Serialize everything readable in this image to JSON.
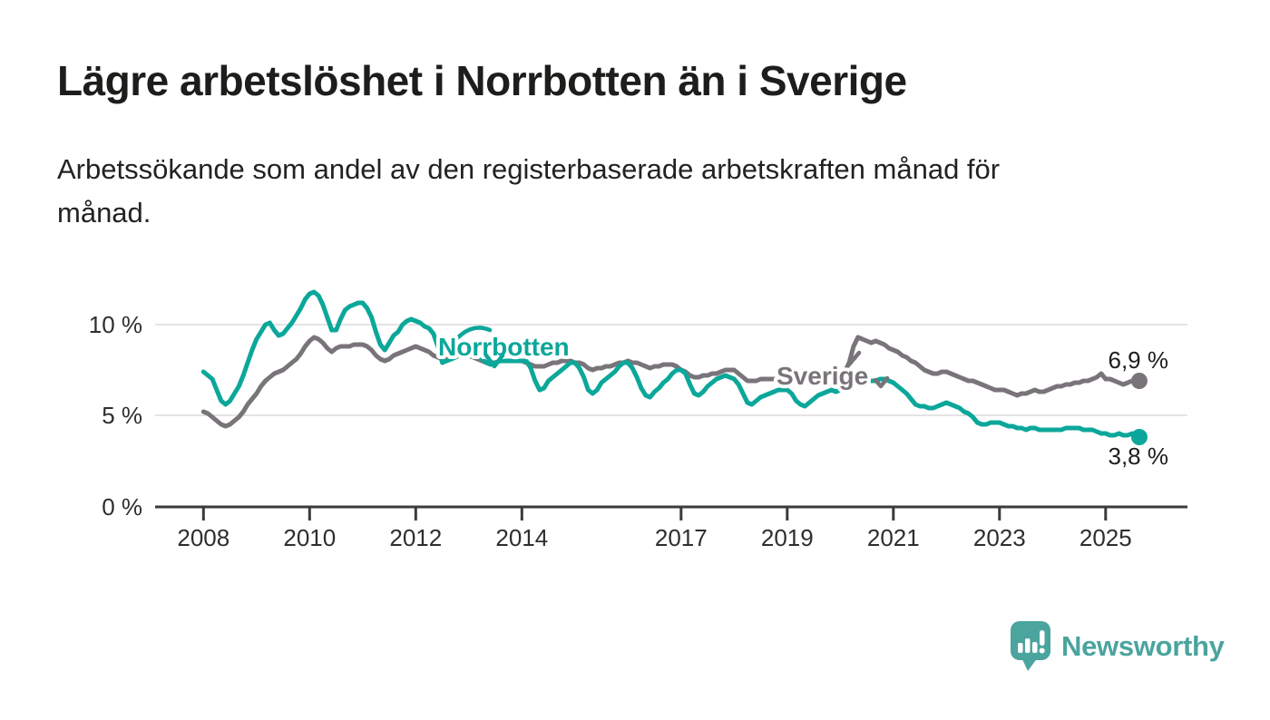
{
  "header": {
    "title": "Lägre arbetslöshet i Norrbotten än i Sverige",
    "subtitle_line1": "Arbetssökande som andel av den registerbaserade arbetskraften månad för",
    "subtitle_line2": "månad."
  },
  "footer": {
    "brand": "Newsworthy"
  },
  "colors": {
    "norrbotten_teal": "#0ba79a",
    "sverige_gray": "#797479",
    "brand_teal": "#4ba49e",
    "axis": "#3b3b3b",
    "gridline": "#e4e4e4",
    "text_dark": "#1d1d1b"
  },
  "chart_data": {
    "type": "line",
    "title": "Lägre arbetslöshet i Norrbotten än i Sverige",
    "subtitle": "Arbetssökande som andel av den registerbaserade arbetskraften månad för månad.",
    "unit": "%",
    "grid": true,
    "x_axis": {
      "x0": 2008,
      "tick_years": [
        2008,
        2010,
        2012,
        2014,
        2017,
        2019,
        2021,
        2023,
        2025
      ],
      "range": [
        2008.0,
        2025.58
      ]
    },
    "y_axis": {
      "tick_labels": [
        "0 %",
        "5 %",
        "10 %"
      ],
      "tick_values": [
        0,
        5,
        10
      ],
      "ylim": [
        0,
        12.5
      ]
    },
    "frequency": "monthly",
    "series": [
      {
        "name": "Sverige",
        "color": "#797479",
        "start_year": 2008,
        "end_label": "6,9 %",
        "end_value": 6.9,
        "values": [
          5.2,
          5.1,
          4.9,
          4.7,
          4.5,
          4.4,
          4.5,
          4.7,
          4.9,
          5.2,
          5.6,
          5.9,
          6.2,
          6.6,
          6.9,
          7.1,
          7.3,
          7.4,
          7.5,
          7.7,
          7.9,
          8.1,
          8.4,
          8.8,
          9.1,
          9.3,
          9.2,
          9.0,
          8.7,
          8.5,
          8.7,
          8.8,
          8.8,
          8.8,
          8.9,
          8.9,
          8.9,
          8.8,
          8.6,
          8.3,
          8.1,
          8.0,
          8.1,
          8.3,
          8.4,
          8.5,
          8.6,
          8.7,
          8.8,
          8.7,
          8.6,
          8.5,
          8.3,
          8.2,
          8.1,
          8.1,
          8.2,
          8.2,
          8.3,
          8.3,
          8.3,
          8.2,
          8.1,
          8.0,
          7.9,
          7.9,
          7.9,
          8.0,
          8.0,
          8.0,
          8.0,
          8.0,
          8.0,
          7.9,
          7.8,
          7.7,
          7.7,
          7.7,
          7.8,
          7.9,
          7.9,
          8.0,
          8.0,
          8.0,
          7.9,
          7.9,
          7.8,
          7.6,
          7.5,
          7.6,
          7.6,
          7.7,
          7.7,
          7.8,
          7.9,
          7.9,
          8.0,
          7.9,
          7.9,
          7.8,
          7.7,
          7.6,
          7.7,
          7.7,
          7.8,
          7.8,
          7.8,
          7.7,
          7.5,
          7.4,
          7.2,
          7.1,
          7.1,
          7.2,
          7.2,
          7.3,
          7.3,
          7.4,
          7.5,
          7.5,
          7.5,
          7.3,
          7.1,
          6.9,
          6.9,
          6.9,
          7.0,
          7.0,
          7.0,
          7.0,
          7.0,
          7.1,
          7.1,
          7.0,
          6.9,
          6.8,
          6.8,
          6.9,
          7.0,
          7.0,
          7.1,
          7.1,
          7.2,
          7.2,
          7.3,
          7.4,
          7.9,
          8.8,
          9.3,
          9.2,
          9.1,
          9.0,
          9.1,
          9.0,
          8.9,
          8.7,
          8.6,
          8.5,
          8.3,
          8.2,
          8.0,
          7.9,
          7.7,
          7.5,
          7.4,
          7.3,
          7.3,
          7.4,
          7.4,
          7.3,
          7.2,
          7.1,
          7.0,
          6.9,
          6.9,
          6.8,
          6.7,
          6.6,
          6.5,
          6.4,
          6.4,
          6.4,
          6.3,
          6.2,
          6.1,
          6.2,
          6.2,
          6.3,
          6.4,
          6.3,
          6.3,
          6.4,
          6.5,
          6.6,
          6.6,
          6.7,
          6.7,
          6.8,
          6.8,
          6.9,
          6.9,
          7.0,
          7.1,
          7.3,
          7.0,
          7.0,
          6.9,
          6.8,
          6.7,
          6.8,
          6.9,
          6.9
        ]
      },
      {
        "name": "Norrbotten",
        "color": "#0ba79a",
        "start_year": 2008,
        "end_label": "3,8 %",
        "end_value": 3.8,
        "values": [
          7.4,
          7.2,
          7.0,
          6.4,
          5.8,
          5.6,
          5.8,
          6.2,
          6.6,
          7.2,
          7.9,
          8.6,
          9.2,
          9.6,
          10.0,
          10.1,
          9.7,
          9.4,
          9.5,
          9.8,
          10.1,
          10.5,
          10.9,
          11.4,
          11.7,
          11.8,
          11.6,
          11.1,
          10.4,
          9.7,
          9.7,
          10.3,
          10.8,
          11.0,
          11.1,
          11.2,
          11.2,
          10.9,
          10.4,
          9.6,
          8.9,
          8.6,
          9.0,
          9.4,
          9.6,
          10.0,
          10.2,
          10.3,
          10.2,
          10.1,
          9.9,
          9.8,
          9.5,
          8.8,
          7.9,
          8.0,
          8.1,
          8.2,
          8.4,
          8.5,
          8.6,
          8.5,
          8.3,
          8.1,
          7.9,
          7.8,
          7.9,
          8.0,
          8.0,
          8.0,
          8.0,
          8.0,
          8.0,
          8.0,
          7.6,
          6.9,
          6.4,
          6.5,
          6.9,
          7.1,
          7.3,
          7.5,
          7.7,
          7.9,
          7.9,
          7.6,
          7.1,
          6.4,
          6.2,
          6.4,
          6.8,
          7.0,
          7.2,
          7.4,
          7.7,
          7.9,
          7.9,
          7.6,
          7.1,
          6.5,
          6.1,
          6.0,
          6.3,
          6.5,
          6.8,
          7.0,
          7.3,
          7.5,
          7.5,
          7.3,
          6.7,
          6.2,
          6.1,
          6.3,
          6.6,
          6.8,
          7.0,
          7.1,
          7.2,
          7.1,
          7.0,
          6.7,
          6.2,
          5.7,
          5.6,
          5.8,
          6.0,
          6.1,
          6.2,
          6.3,
          6.4,
          6.4,
          6.4,
          6.2,
          5.8,
          5.6,
          5.5,
          5.7,
          5.9,
          6.1,
          6.2,
          6.3,
          6.4,
          6.3,
          6.4,
          6.4,
          6.6,
          6.8,
          7.0,
          7.1,
          7.0,
          6.9,
          6.9,
          7.0,
          7.0,
          6.9,
          6.8,
          6.6,
          6.4,
          6.2,
          5.9,
          5.6,
          5.5,
          5.5,
          5.4,
          5.4,
          5.5,
          5.6,
          5.7,
          5.6,
          5.5,
          5.4,
          5.2,
          5.1,
          4.9,
          4.6,
          4.5,
          4.5,
          4.6,
          4.6,
          4.6,
          4.5,
          4.4,
          4.4,
          4.3,
          4.3,
          4.2,
          4.3,
          4.3,
          4.2,
          4.2,
          4.2,
          4.2,
          4.2,
          4.2,
          4.3,
          4.3,
          4.3,
          4.3,
          4.2,
          4.2,
          4.2,
          4.1,
          4.0,
          4.0,
          3.9,
          3.9,
          4.0,
          3.9,
          3.9,
          4.0,
          3.8
        ]
      }
    ],
    "legend_position": "inline-annotations"
  }
}
